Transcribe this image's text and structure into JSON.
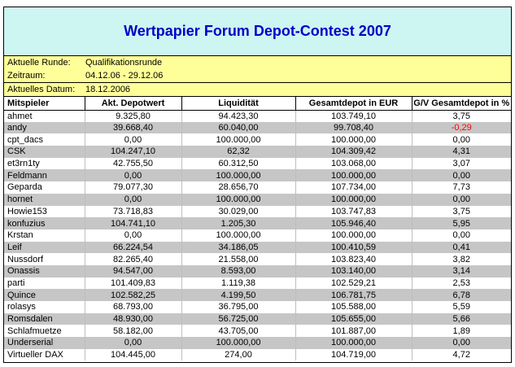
{
  "title": "Wertpapier Forum Depot-Contest 2007",
  "info": {
    "round_label": "Aktuelle Runde:",
    "round_value": "Qualifikationsrunde",
    "period_label": "Zeitraum:",
    "period_value": "04.12.06 - 29.12.06",
    "date_label": "Aktuelles Datum:",
    "date_value": "18.12.2006"
  },
  "colors": {
    "title_background": "#CDF5F2",
    "title_text": "#0000C8",
    "info_background": "#FFFF99",
    "stripe_gray": "#C6C6C6",
    "negative_value": "#FF0000",
    "border_black": "#000000",
    "gridline_gray": "#BEBEBE"
  },
  "table": {
    "columns": [
      "Mitspieler",
      "Akt. Depotwert",
      "Liquidität",
      "Gesamtdepot in EUR",
      "G/V Gesamtdepot in %"
    ],
    "rows": [
      [
        "ahmet",
        "9.325,80",
        "94.423,30",
        "103.749,10",
        "3,75"
      ],
      [
        "andy",
        "39.668,40",
        "60.040,00",
        "99.708,40",
        "-0,29"
      ],
      [
        "cpt_dacs",
        "0,00",
        "100.000,00",
        "100.000,00",
        "0,00"
      ],
      [
        "CSK",
        "104.247,10",
        "62,32",
        "104.309,42",
        "4,31"
      ],
      [
        "et3rn1ty",
        "42.755,50",
        "60.312,50",
        "103.068,00",
        "3,07"
      ],
      [
        "Feldmann",
        "0,00",
        "100.000,00",
        "100.000,00",
        "0,00"
      ],
      [
        "Geparda",
        "79.077,30",
        "28.656,70",
        "107.734,00",
        "7,73"
      ],
      [
        "hornet",
        "0,00",
        "100.000,00",
        "100.000,00",
        "0,00"
      ],
      [
        "Howie153",
        "73.718,83",
        "30.029,00",
        "103.747,83",
        "3,75"
      ],
      [
        "konfuzius",
        "104.741,10",
        "1.205,30",
        "105.946,40",
        "5,95"
      ],
      [
        "Krstan",
        "0,00",
        "100.000,00",
        "100.000,00",
        "0,00"
      ],
      [
        "Leif",
        "66.224,54",
        "34.186,05",
        "100.410,59",
        "0,41"
      ],
      [
        "Nussdorf",
        "82.265,40",
        "21.558,00",
        "103.823,40",
        "3,82"
      ],
      [
        "Onassis",
        "94.547,00",
        "8.593,00",
        "103.140,00",
        "3,14"
      ],
      [
        "parti",
        "101.409,83",
        "1.119,38",
        "102.529,21",
        "2,53"
      ],
      [
        "Quince",
        "102.582,25",
        "4.199,50",
        "106.781,75",
        "6,78"
      ],
      [
        "rolasys",
        "68.793,00",
        "36.795,00",
        "105.588,00",
        "5,59"
      ],
      [
        "Romsdalen",
        "48.930,00",
        "56.725,00",
        "105.655,00",
        "5,66"
      ],
      [
        "Schlafmuetze",
        "58.182,00",
        "43.705,00",
        "101.887,00",
        "1,89"
      ],
      [
        "Underserial",
        "0,00",
        "100.000,00",
        "100.000,00",
        "0,00"
      ],
      [
        "Virtueller DAX",
        "104.445,00",
        "274,00",
        "104.719,00",
        "4,72"
      ]
    ]
  }
}
